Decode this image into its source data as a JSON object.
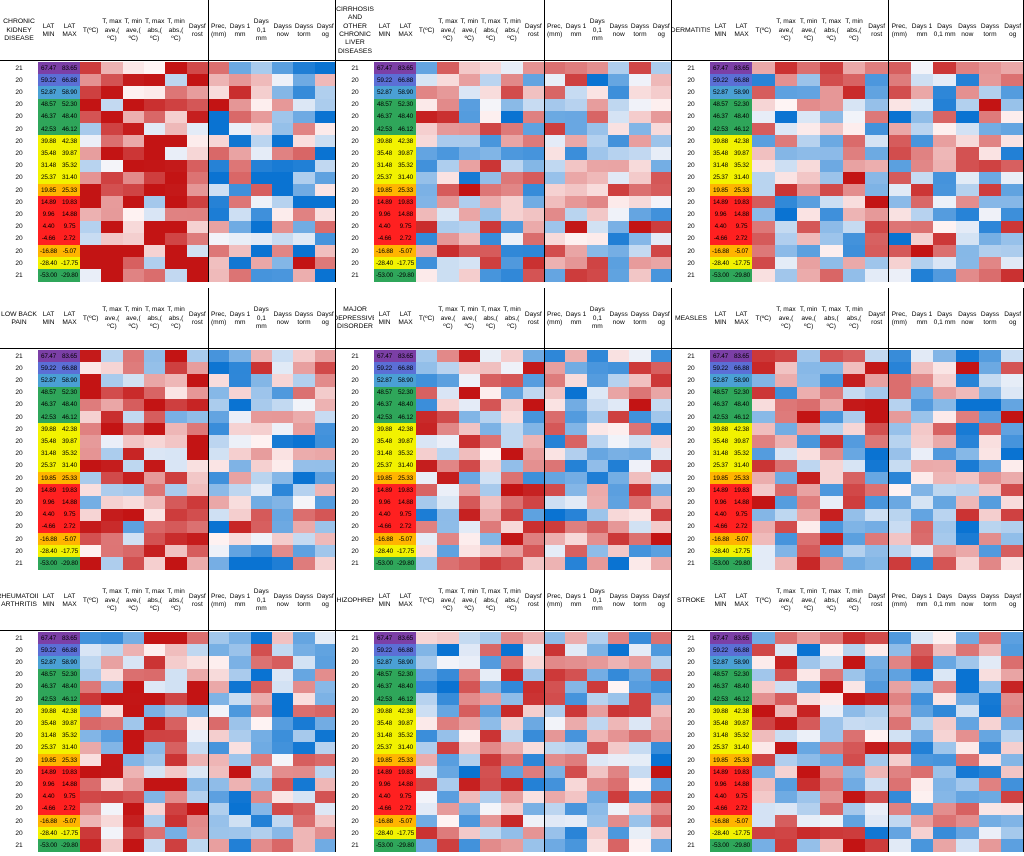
{
  "panels": [
    {
      "title": "CHRONIC KIDNEY DISEASE",
      "seed": 11,
      "warm": 0.55
    },
    {
      "title": "CIRRHOSIS AND OTHER CHRONIC LIVER DISEASES",
      "seed": 23,
      "warm": 0.05
    },
    {
      "title": "DERMATITIS",
      "seed": 37,
      "warm": 0.0
    },
    {
      "title": "LOW BACK PAIN",
      "seed": 41,
      "warm": 0.35
    },
    {
      "title": "MAJOR DEPRESSIVE DISORDER",
      "seed": 53,
      "warm": 0.1
    },
    {
      "title": "MEASLES",
      "seed": 67,
      "warm": 0.15
    },
    {
      "title": "RHEUMATOID ARTHRITIS",
      "seed": 71,
      "warm": 0.35
    },
    {
      "title": "SCHIZOPHRENIA",
      "seed": 83,
      "warm": 0.05
    },
    {
      "title": "STROKE",
      "seed": 97,
      "warm": 0.2
    }
  ],
  "headers": {
    "lat_min": "LAT MIN",
    "lat_max": "LAT MAX",
    "temp": "T(ºC)",
    "tmax_ave": "T, max ave,( ºC)",
    "tmin_ave": "T, min ave,( ºC)",
    "tmax_abs": "T, max abs,( ºC)",
    "tmin_abs": "T, min abs,( ºC)",
    "daysfrost": "Daysf rost",
    "prec": "Prec, (mm)",
    "days1mm": "Days 1 mm",
    "days01mm": "Days 0,1 mm",
    "dayssnow": "Dayss now",
    "daysstorm": "Dayss torm",
    "daysfog": "Daysf og"
  },
  "rows": [
    {
      "n": "21",
      "min": "67.47",
      "max": "83.65",
      "c": "#7b3fa6"
    },
    {
      "n": "20",
      "min": "59.22",
      "max": "66.88",
      "c": "#5b6fd6"
    },
    {
      "n": "20",
      "min": "52.87",
      "max": "58.90",
      "c": "#4aa0d4"
    },
    {
      "n": "20",
      "min": "48.57",
      "max": "52.30",
      "c": "#2fa65a"
    },
    {
      "n": "20",
      "min": "46.37",
      "max": "48.40",
      "c": "#2fa65a"
    },
    {
      "n": "20",
      "min": "42.53",
      "max": "46.12",
      "c": "#2fa65a"
    },
    {
      "n": "20",
      "min": "39.88",
      "max": "42.38",
      "c": "#f2f200"
    },
    {
      "n": "20",
      "min": "35.48",
      "max": "39.87",
      "c": "#f2f200"
    },
    {
      "n": "20",
      "min": "31.48",
      "max": "35.32",
      "c": "#f2f200"
    },
    {
      "n": "20",
      "min": "25.37",
      "max": "31.40",
      "c": "#f2f200"
    },
    {
      "n": "20",
      "min": "19.85",
      "max": "25.33",
      "c": "#ffb400"
    },
    {
      "n": "20",
      "min": "14.89",
      "max": "19.83",
      "c": "#ff2020"
    },
    {
      "n": "20",
      "min": "9.96",
      "max": "14.88",
      "c": "#ff2020"
    },
    {
      "n": "20",
      "min": "4.40",
      "max": "9.75",
      "c": "#ff2020"
    },
    {
      "n": "20",
      "min": "-4.66",
      "max": "2.72",
      "c": "#ff2020"
    },
    {
      "n": "20",
      "min": "-16.88",
      "max": "-5.07",
      "c": "#ffb400"
    },
    {
      "n": "20",
      "min": "-28.40",
      "max": "-17.75",
      "c": "#f2f200"
    },
    {
      "n": "21",
      "min": "-53.00",
      "max": "-29.80",
      "c": "#2fa65a"
    }
  ]
}
